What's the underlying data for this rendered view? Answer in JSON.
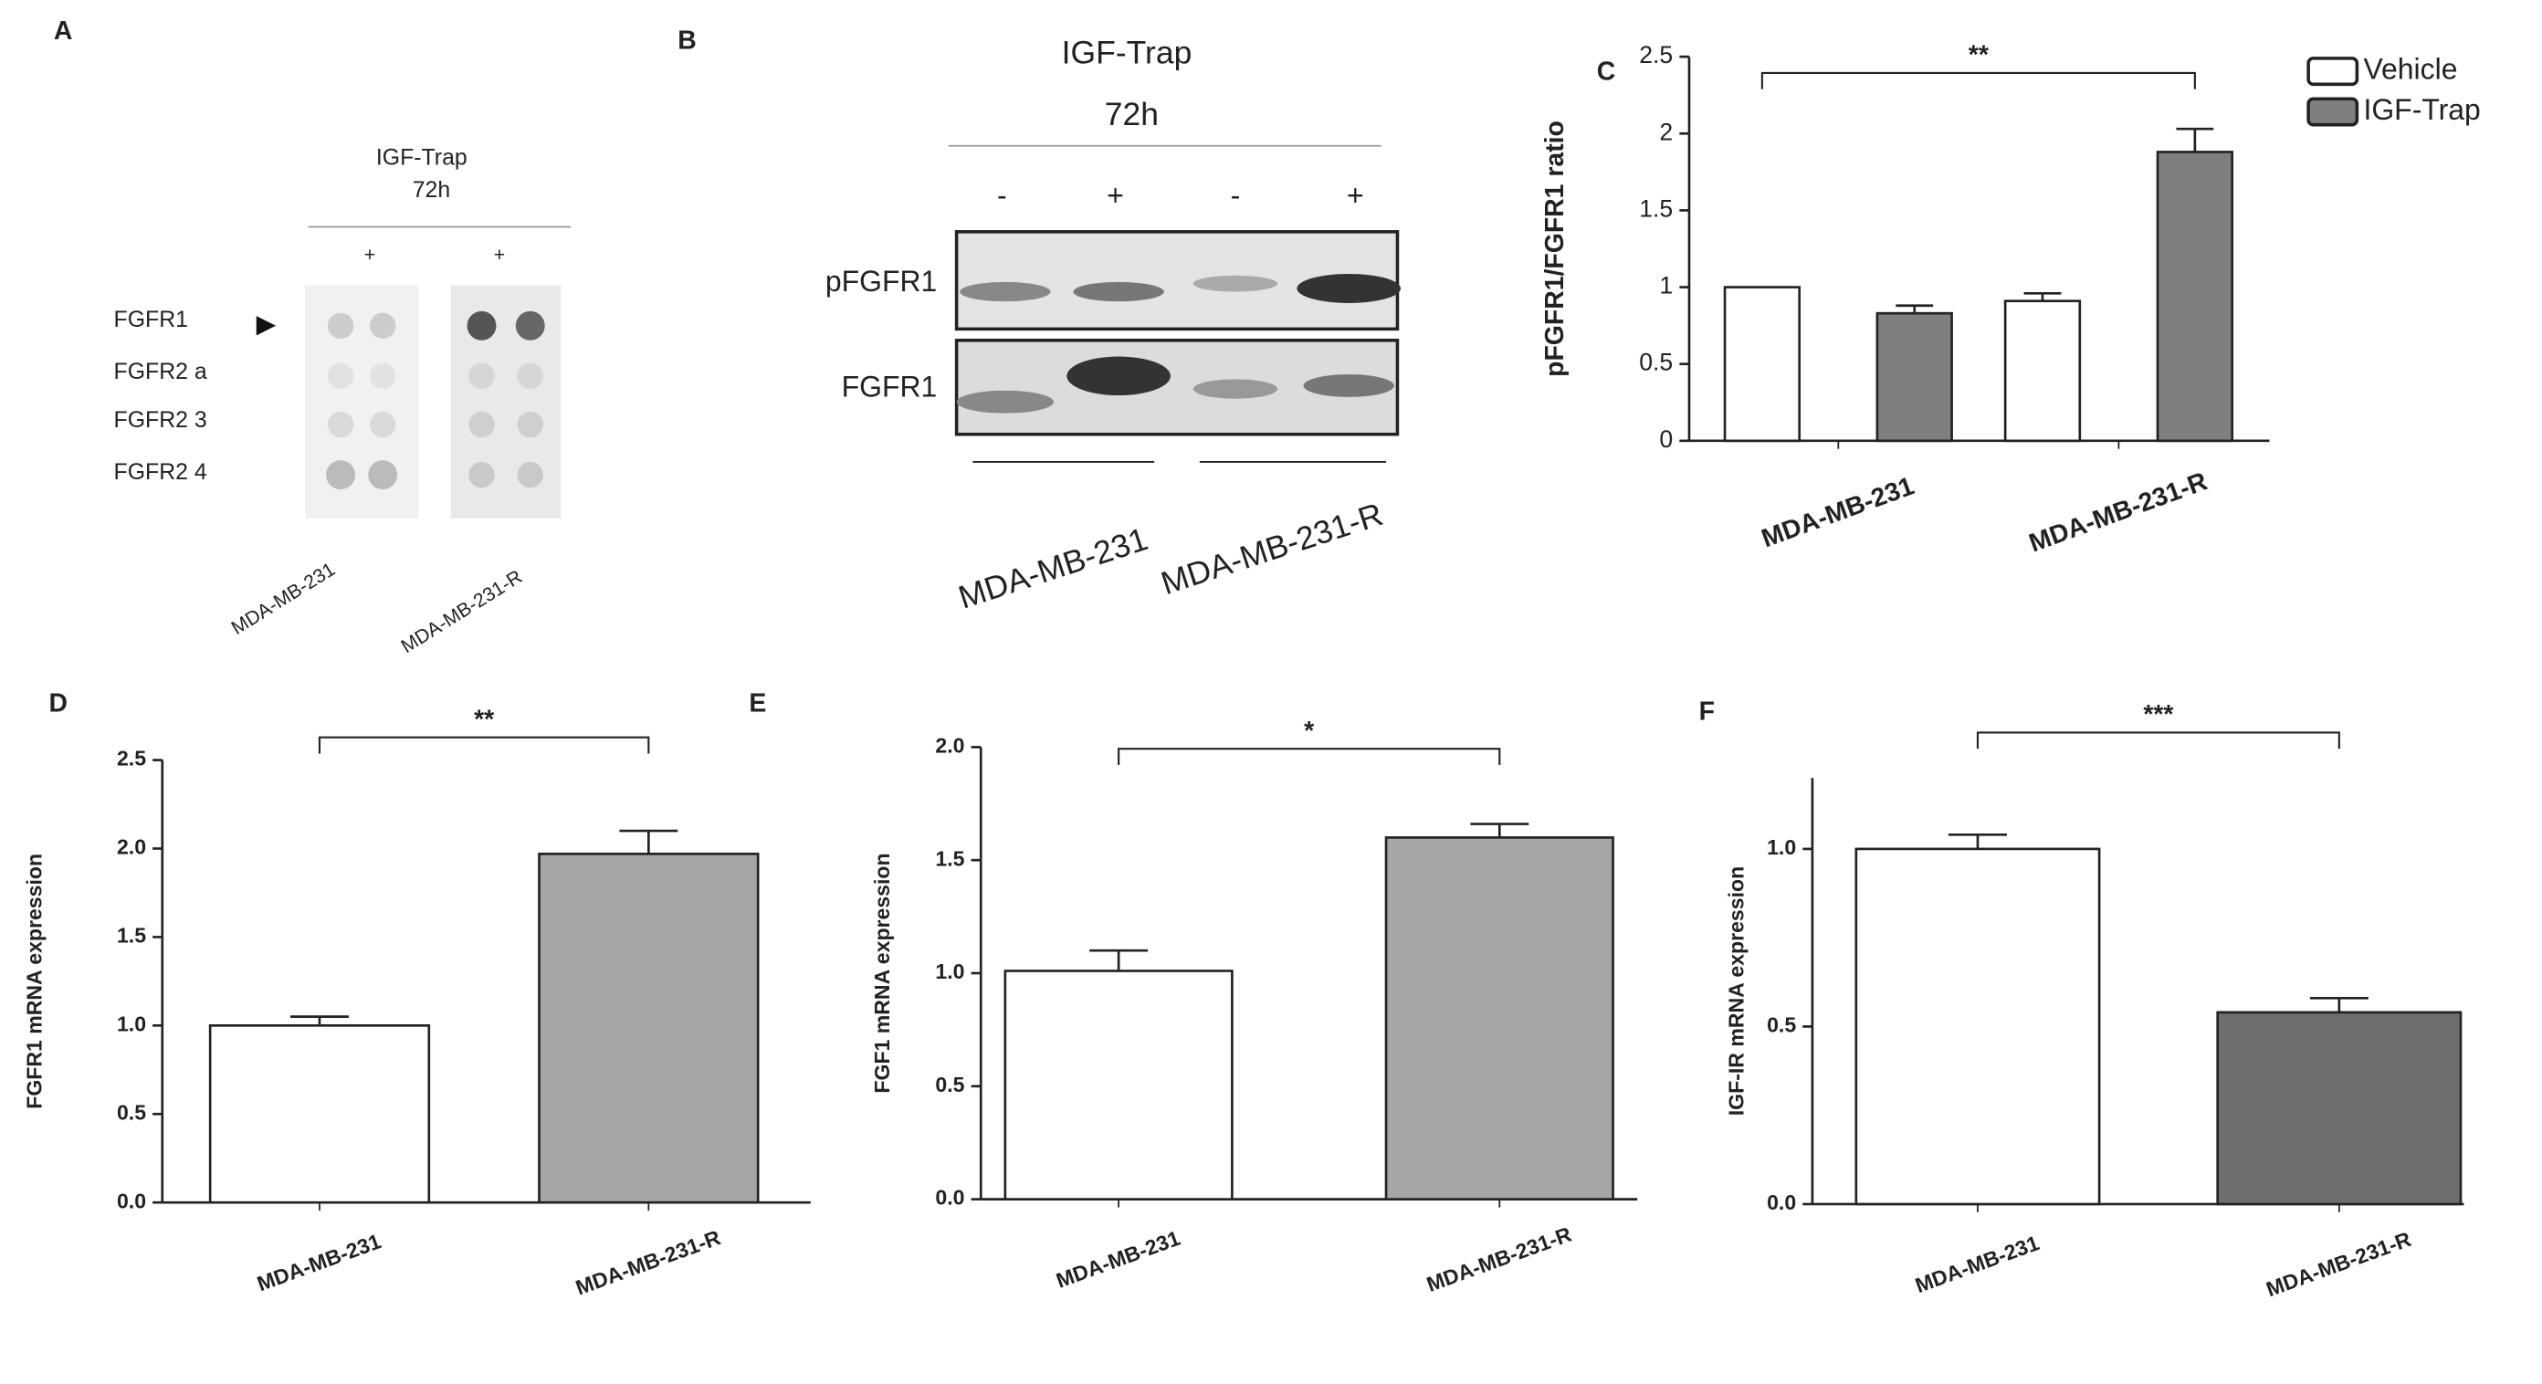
{
  "panels": {
    "A": {
      "panel_label": "A",
      "treatment": "IGF-Trap",
      "time": "72h",
      "signs": [
        "+",
        "+"
      ],
      "rows": [
        "FGFR1",
        "FGFR2 a",
        "FGFR2 3",
        "FGFR2 4"
      ],
      "cells": [
        "MDA-MB-231",
        "MDA-MB-231-R"
      ]
    },
    "B": {
      "panel_label": "B",
      "treatment": "IGF-Trap",
      "time": "72h",
      "signs": [
        "-",
        "+",
        "-",
        "+"
      ],
      "rows": [
        "pFGFR1",
        "FGFR1"
      ],
      "cells": [
        "MDA-MB-231",
        "MDA-MB-231-R"
      ]
    }
  },
  "chart_data": [
    {
      "type": "bar",
      "panel_label": "C",
      "ylabel": "pFGFR1/FGFR1 ratio",
      "categories": [
        "MDA-MB-231",
        "MDA-MB-231-R"
      ],
      "series": [
        {
          "name": "Vehicle",
          "color": "#ffffff",
          "values": [
            1.0,
            0.91
          ],
          "errors": [
            0,
            0.05
          ]
        },
        {
          "name": "IGF-Trap",
          "color": "#7f7f7f",
          "values": [
            0.83,
            1.88
          ],
          "errors": [
            0.05,
            0.15
          ]
        }
      ],
      "ylim": [
        0,
        2.5
      ],
      "yticks": [
        0,
        0.5,
        1,
        1.5,
        2,
        2.5
      ],
      "annotation": "**"
    },
    {
      "type": "bar",
      "panel_label": "D",
      "ylabel": "FGFR1  mRNA expression",
      "categories": [
        "MDA-MB-231",
        "MDA-MB-231-R"
      ],
      "values": [
        1.0,
        1.97
      ],
      "errors": [
        0.05,
        0.13
      ],
      "colors": [
        "#ffffff",
        "#a6a6a8"
      ],
      "ylim": [
        0,
        2.5
      ],
      "yticks": [
        {
          "value": 0,
          "label": "0.0"
        },
        {
          "value": 0.5,
          "label": "0.5"
        },
        {
          "value": 1,
          "label": "1.0"
        },
        {
          "value": 1.5,
          "label": "1.5"
        },
        {
          "value": 2,
          "label": "2.0"
        },
        {
          "value": 2.5,
          "label": "2.5"
        }
      ],
      "annotation": "**"
    },
    {
      "type": "bar",
      "panel_label": "E",
      "ylabel": "FGF1 mRNA expression",
      "categories": [
        "MDA-MB-231",
        "MDA-MB-231-R"
      ],
      "values": [
        1.01,
        1.6
      ],
      "errors": [
        0.09,
        0.06
      ],
      "colors": [
        "#ffffff",
        "#a6a6a8"
      ],
      "ylim": [
        0,
        2.0
      ],
      "yticks": [
        {
          "value": 0,
          "label": "0.0"
        },
        {
          "value": 0.5,
          "label": "0.5"
        },
        {
          "value": 1,
          "label": "1.0"
        },
        {
          "value": 1.5,
          "label": "1.5"
        },
        {
          "value": 2,
          "label": "2.0"
        }
      ],
      "annotation": "*"
    },
    {
      "type": "bar",
      "panel_label": "F",
      "ylabel": "IGF-IR  mRNA expression",
      "categories": [
        "MDA-MB-231",
        "MDA-MB-231-R"
      ],
      "values": [
        1.0,
        0.54
      ],
      "errors": [
        0.04,
        0.04
      ],
      "colors": [
        "#ffffff",
        "#6e6e6e"
      ],
      "ylim": [
        0,
        1.2
      ],
      "yticks": [
        {
          "value": 0,
          "label": "0.0"
        },
        {
          "value": 0.5,
          "label": "0.5"
        },
        {
          "value": 1,
          "label": "1.0"
        }
      ],
      "annotation": "***"
    }
  ]
}
